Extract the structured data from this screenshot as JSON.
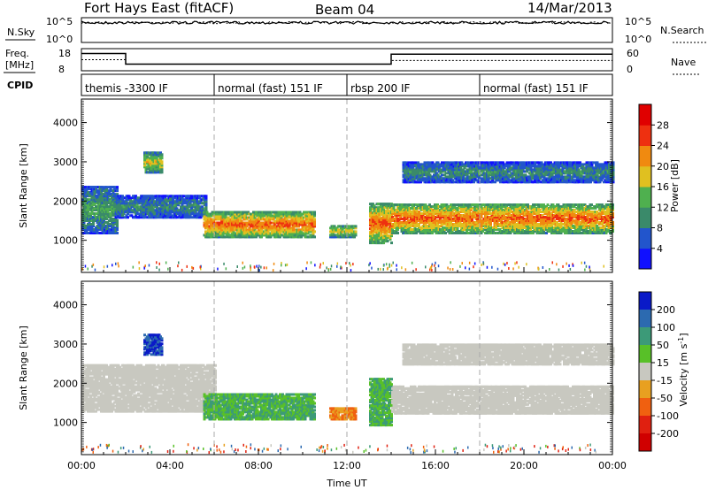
{
  "header": {
    "station": "Fort Hays East (fitACF)",
    "beam": "Beam 04",
    "date": "14/Mar/2013"
  },
  "noise_panel": {
    "left_label": "N.Sky",
    "right_label": "N.Search",
    "left_ticks": [
      "10^5",
      "10^0"
    ],
    "right_ticks": [
      "10^5",
      "10^0"
    ]
  },
  "freq_panel": {
    "left_label_1": "Freq.",
    "left_label_2": "[MHz]",
    "right_label": "Nave",
    "left_ticks": [
      "18",
      "8"
    ],
    "right_ticks": [
      "60",
      "0"
    ]
  },
  "cpid_panel": {
    "label": "CPID",
    "modes": [
      {
        "name": "themis -3300 IF",
        "start": 0.0
      },
      {
        "name": "normal (fast) 151 IF",
        "start": 6.0
      },
      {
        "name": "rbsp 200 IF",
        "start": 12.0
      },
      {
        "name": "normal (fast) 151 IF",
        "start": 18.0
      }
    ]
  },
  "power_colorbar": {
    "label": "Power [dB]",
    "ticks": [
      "4",
      "8",
      "12",
      "16",
      "20",
      "24",
      "28"
    ],
    "colors": [
      "#1010ff",
      "#2255cc",
      "#3a8a6a",
      "#4fb04f",
      "#e0c020",
      "#f08a10",
      "#ee3010",
      "#e00000"
    ]
  },
  "velocity_colorbar": {
    "label_main": "Velocity [m s",
    "label_exp": "-1",
    "label_end": "]",
    "ticks": [
      "200",
      "100",
      "50",
      "15",
      "-15",
      "-50",
      "-100",
      "-200"
    ],
    "colors": [
      "#0a1ac8",
      "#2c6ab0",
      "#3c9a78",
      "#58c028",
      "#c8c8c0",
      "#e8a020",
      "#f06010",
      "#e02010",
      "#d00000"
    ]
  },
  "chart_data": {
    "type": "heatmap",
    "xlabel": "Time UT",
    "x_ticks": [
      "00:00",
      "04:00",
      "08:00",
      "12:00",
      "16:00",
      "20:00",
      "00:00"
    ],
    "xlim": [
      0,
      24
    ],
    "ylabel": "Slant Range [km]",
    "y_ticks": [
      1000,
      2000,
      3000,
      4000
    ],
    "ylim": [
      180,
      4600
    ],
    "noise": {
      "n_sky_level": 10000,
      "n_search_level": 10000
    },
    "frequency": {
      "segments": [
        {
          "start": 0.0,
          "end": 2.0,
          "freq_mhz": 15.8
        },
        {
          "start": 2.0,
          "end": 14.0,
          "freq_mhz": 11.0
        },
        {
          "start": 14.0,
          "end": 24.0,
          "freq_mhz": 15.5
        }
      ]
    },
    "nave": {
      "segments": [
        {
          "start": 0.0,
          "end": 2.0,
          "value": 30
        },
        {
          "start": 2.0,
          "end": 14.0,
          "value": 18
        },
        {
          "start": 14.0,
          "end": 24.0,
          "value": 28
        }
      ]
    },
    "power_scatter_regions": [
      {
        "t0": 0.0,
        "t1": 1.6,
        "r0": 1150,
        "r1": 2350,
        "db": 12
      },
      {
        "t0": 1.5,
        "t1": 5.6,
        "r0": 1550,
        "r1": 2100,
        "db": 10
      },
      {
        "t0": 2.8,
        "t1": 3.6,
        "r0": 2700,
        "r1": 3200,
        "db": 18
      },
      {
        "t0": 5.5,
        "t1": 10.5,
        "r0": 1050,
        "r1": 1700,
        "db": 24
      },
      {
        "t0": 11.2,
        "t1": 12.4,
        "r0": 1050,
        "r1": 1350,
        "db": 18
      },
      {
        "t0": 13.0,
        "t1": 14.0,
        "r0": 900,
        "r1": 1900,
        "db": 24
      },
      {
        "t0": 14.0,
        "t1": 24.0,
        "r0": 1150,
        "r1": 1900,
        "db": 24
      },
      {
        "t0": 14.5,
        "t1": 24.0,
        "r0": 2450,
        "r1": 2950,
        "db": 10
      }
    ],
    "velocity_scatter_regions": [
      {
        "t0": 0.0,
        "t1": 6.0,
        "r0": 1250,
        "r1": 2450,
        "ms": 0
      },
      {
        "t0": 2.8,
        "t1": 3.6,
        "r0": 2700,
        "r1": 3200,
        "ms": 200
      },
      {
        "t0": 5.5,
        "t1": 10.5,
        "r0": 1050,
        "r1": 1700,
        "ms": 50
      },
      {
        "t0": 11.2,
        "t1": 12.4,
        "r0": 1050,
        "r1": 1350,
        "ms": -50
      },
      {
        "t0": 13.0,
        "t1": 14.0,
        "r0": 900,
        "r1": 2100,
        "ms": 50
      },
      {
        "t0": 14.0,
        "t1": 24.0,
        "r0": 1200,
        "r1": 1900,
        "ms": 0
      },
      {
        "t0": 14.5,
        "t1": 24.0,
        "r0": 2450,
        "r1": 2950,
        "ms": 0
      }
    ]
  }
}
